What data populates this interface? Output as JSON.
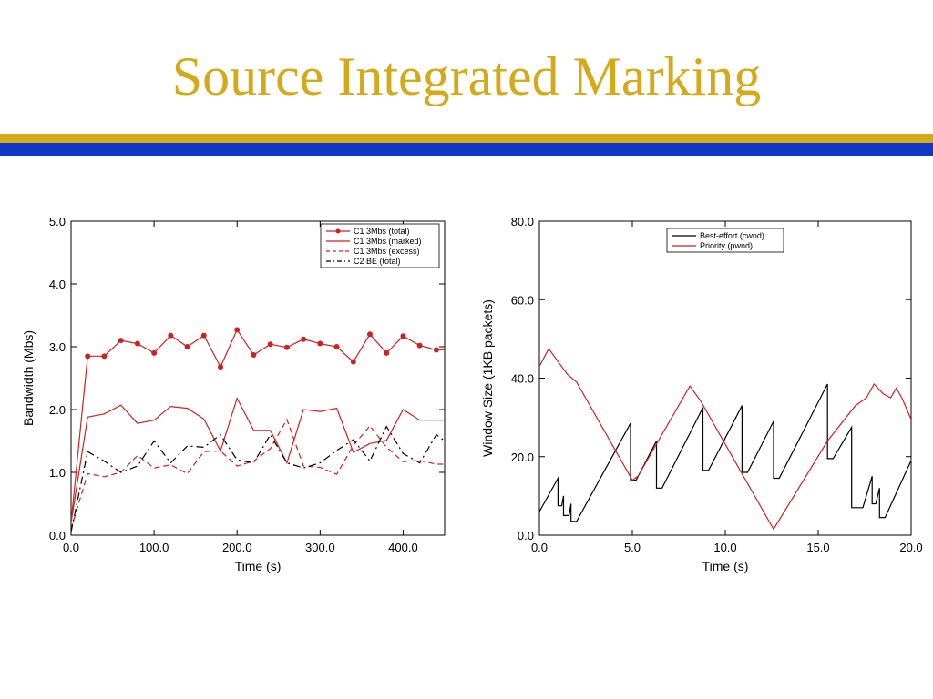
{
  "slide": {
    "title": "Source Integrated Marking",
    "colors": {
      "title": "#d4a91a",
      "rule_gold": "#d4a91a",
      "rule_blue": "#1038c8"
    }
  },
  "chart_data": [
    {
      "type": "line",
      "xlabel": "Time (s)",
      "ylabel": "Bandwidth (Mbs)",
      "xlim": [
        0,
        450
      ],
      "ylim": [
        0,
        5
      ],
      "xticks": [
        "0.0",
        "100.0",
        "200.0",
        "300.0",
        "400.0"
      ],
      "yticks": [
        "0.0",
        "1.0",
        "2.0",
        "3.0",
        "4.0",
        "5.0"
      ],
      "legend_position": "top-right",
      "x": [
        0,
        20,
        40,
        60,
        80,
        100,
        120,
        140,
        160,
        180,
        200,
        220,
        240,
        260,
        280,
        300,
        320,
        340,
        360,
        380,
        400,
        420,
        440,
        450
      ],
      "series": [
        {
          "name": "C1 3Mbs (total)",
          "style": "solid-markers",
          "color": "#cc2222",
          "values": [
            0.2,
            2.85,
            2.85,
            3.1,
            3.05,
            2.9,
            3.18,
            3.0,
            3.18,
            2.68,
            3.27,
            2.87,
            3.04,
            2.99,
            3.12,
            3.05,
            3.0,
            2.76,
            3.2,
            2.9,
            3.17,
            3.02,
            2.95,
            2.95
          ]
        },
        {
          "name": "C1 3Mbs (marked)",
          "style": "solid",
          "color": "#cc2222",
          "values": [
            0.2,
            1.88,
            1.93,
            2.07,
            1.78,
            1.83,
            2.05,
            2.02,
            1.85,
            1.34,
            2.18,
            1.67,
            1.67,
            1.15,
            2.0,
            1.97,
            2.02,
            1.32,
            1.46,
            1.51,
            2.0,
            1.83,
            1.83,
            1.83
          ]
        },
        {
          "name": "C1 3Mbs (excess)",
          "style": "dashed",
          "color": "#cc2222",
          "values": [
            0.1,
            0.98,
            0.93,
            1.0,
            1.27,
            1.07,
            1.12,
            0.98,
            1.33,
            1.34,
            1.1,
            1.18,
            1.38,
            1.84,
            1.1,
            1.08,
            0.97,
            1.43,
            1.74,
            1.4,
            1.17,
            1.19,
            1.13,
            1.13
          ]
        },
        {
          "name": "C2 BE (total)",
          "style": "dashdot",
          "color": "#000000",
          "values": [
            0.05,
            1.33,
            1.18,
            1.0,
            1.1,
            1.5,
            1.15,
            1.42,
            1.4,
            1.6,
            1.2,
            1.15,
            1.6,
            1.15,
            1.07,
            1.15,
            1.35,
            1.52,
            1.18,
            1.73,
            1.3,
            1.15,
            1.6,
            1.5
          ]
        }
      ]
    },
    {
      "type": "line",
      "xlabel": "Time (s)",
      "ylabel": "Window Size (1KB packets)",
      "xlim": [
        0,
        20
      ],
      "ylim": [
        0,
        80
      ],
      "xticks": [
        "0.0",
        "5.0",
        "10.0",
        "15.0",
        "20.0"
      ],
      "yticks": [
        "0.0",
        "20.0",
        "40.0",
        "60.0",
        "80.0"
      ],
      "legend_position": "top-right",
      "series": [
        {
          "name": "Best-effort (cwnd)",
          "style": "staircase",
          "color": "#000000",
          "points": [
            [
              0,
              6
            ],
            [
              1.0,
              14.5
            ],
            [
              1.0,
              7.5
            ],
            [
              1.2,
              7.5
            ],
            [
              1.3,
              10
            ],
            [
              1.3,
              5
            ],
            [
              1.6,
              5
            ],
            [
              1.7,
              8
            ],
            [
              1.7,
              3.5
            ],
            [
              2.0,
              3.5
            ],
            [
              4.9,
              28.5
            ],
            [
              4.9,
              14
            ],
            [
              5.2,
              14
            ],
            [
              6.3,
              24
            ],
            [
              6.3,
              12
            ],
            [
              6.6,
              12
            ],
            [
              8.8,
              32.5
            ],
            [
              8.8,
              16.5
            ],
            [
              9.1,
              16.5
            ],
            [
              10.9,
              33
            ],
            [
              10.9,
              16
            ],
            [
              11.2,
              16
            ],
            [
              12.6,
              29
            ],
            [
              12.6,
              14.5
            ],
            [
              12.9,
              14.5
            ],
            [
              15.5,
              38.5
            ],
            [
              15.5,
              19.5
            ],
            [
              15.8,
              19.5
            ],
            [
              16.8,
              27.5
            ],
            [
              16.8,
              7
            ],
            [
              17.4,
              7
            ],
            [
              17.9,
              15
            ],
            [
              17.9,
              8
            ],
            [
              18.1,
              8
            ],
            [
              18.3,
              12
            ],
            [
              18.3,
              4.5
            ],
            [
              18.6,
              4.5
            ],
            [
              20.0,
              19
            ]
          ]
        },
        {
          "name": "Priority (pwnd)",
          "style": "staircase",
          "color": "#cc2222",
          "points": [
            [
              0,
              43
            ],
            [
              0.5,
              47.5
            ],
            [
              1.5,
              41
            ],
            [
              2.0,
              39
            ],
            [
              5.0,
              14
            ],
            [
              5.3,
              15
            ],
            [
              8.1,
              38
            ],
            [
              8.7,
              34
            ],
            [
              12.6,
              1.5
            ],
            [
              15.5,
              24
            ],
            [
              17.0,
              33
            ],
            [
              17.6,
              35
            ],
            [
              18.0,
              38.5
            ],
            [
              18.5,
              36
            ],
            [
              18.9,
              35
            ],
            [
              19.2,
              37.5
            ],
            [
              19.5,
              35
            ],
            [
              20.0,
              29.5
            ]
          ]
        }
      ]
    }
  ]
}
